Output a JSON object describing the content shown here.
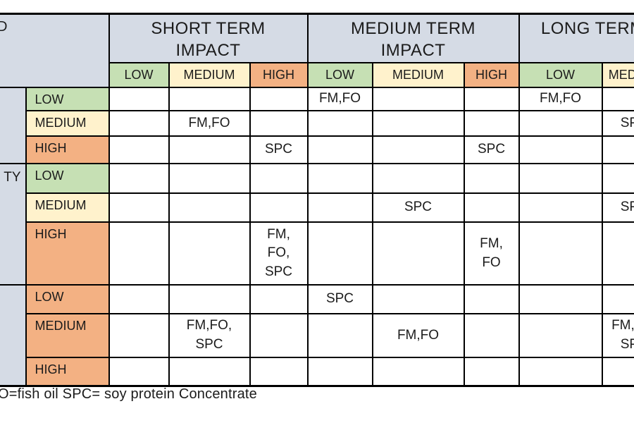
{
  "colors": {
    "header_bg": "#d5dbe5",
    "low_green": "#c6e0b4",
    "medium_yellow": "#fff2cc",
    "high_orange": "#f3b183",
    "grid_border": "#000000",
    "page_bg": "#ffffff",
    "text": "#1b1b1b"
  },
  "corner": {
    "fragment": "D"
  },
  "column_groups": [
    {
      "title_line1": "SHORT TERM",
      "title_line2": "IMPACT",
      "subcols": [
        "LOW",
        "MEDIUM",
        "HIGH"
      ]
    },
    {
      "title_line1": "MEDIUM TERM",
      "title_line2": "IMPACT",
      "subcols": [
        "LOW",
        "MEDIUM",
        "HIGH"
      ]
    },
    {
      "title_line1": "LONG TERM",
      "title_line2": "",
      "subcols": [
        "LOW",
        "MEDIUM"
      ]
    }
  ],
  "row_groups": [
    {
      "side_label": "",
      "rows": [
        {
          "label": "LOW",
          "color": "green",
          "cells": [
            "",
            "",
            "",
            "FM,FO",
            "",
            "",
            "FM,FO",
            ""
          ]
        },
        {
          "label": "MEDIUM",
          "color": "yellow",
          "cells": [
            "",
            "FM,FO",
            "",
            "",
            "",
            "",
            "",
            "SPC"
          ]
        },
        {
          "label": "HIGH",
          "color": "orange",
          "cells": [
            "",
            "",
            "SPC",
            "",
            "",
            "SPC",
            "",
            ""
          ]
        }
      ]
    },
    {
      "side_label": "TY",
      "rows": [
        {
          "label": "LOW",
          "color": "green",
          "cells": [
            "",
            "",
            "",
            "",
            "",
            "",
            "",
            ""
          ]
        },
        {
          "label": "MEDIUM",
          "color": "yellow",
          "cells": [
            "",
            "",
            "",
            "",
            "SPC",
            "",
            "",
            "SPC"
          ]
        },
        {
          "label": "HIGH",
          "color": "orange",
          "cells": [
            "",
            "",
            "FM,\nFO,\nSPC",
            "",
            "",
            "FM,\nFO",
            "",
            ""
          ]
        }
      ]
    },
    {
      "side_label": "",
      "rows": [
        {
          "label": "LOW",
          "color": "orange",
          "cells": [
            "",
            "",
            "",
            "SPC",
            "",
            "",
            "",
            ""
          ]
        },
        {
          "label": "MEDIUM",
          "color": "orange",
          "cells": [
            "",
            "FM,FO,\nSPC",
            "",
            "",
            "FM,FO",
            "",
            "",
            "FM,FO,\nSPC"
          ]
        },
        {
          "label": "HIGH",
          "color": "orange",
          "cells": [
            "",
            "",
            "",
            "",
            "",
            "",
            "",
            ""
          ]
        }
      ]
    }
  ],
  "legend": "O=fish oil SPC= soy protein Concentrate"
}
